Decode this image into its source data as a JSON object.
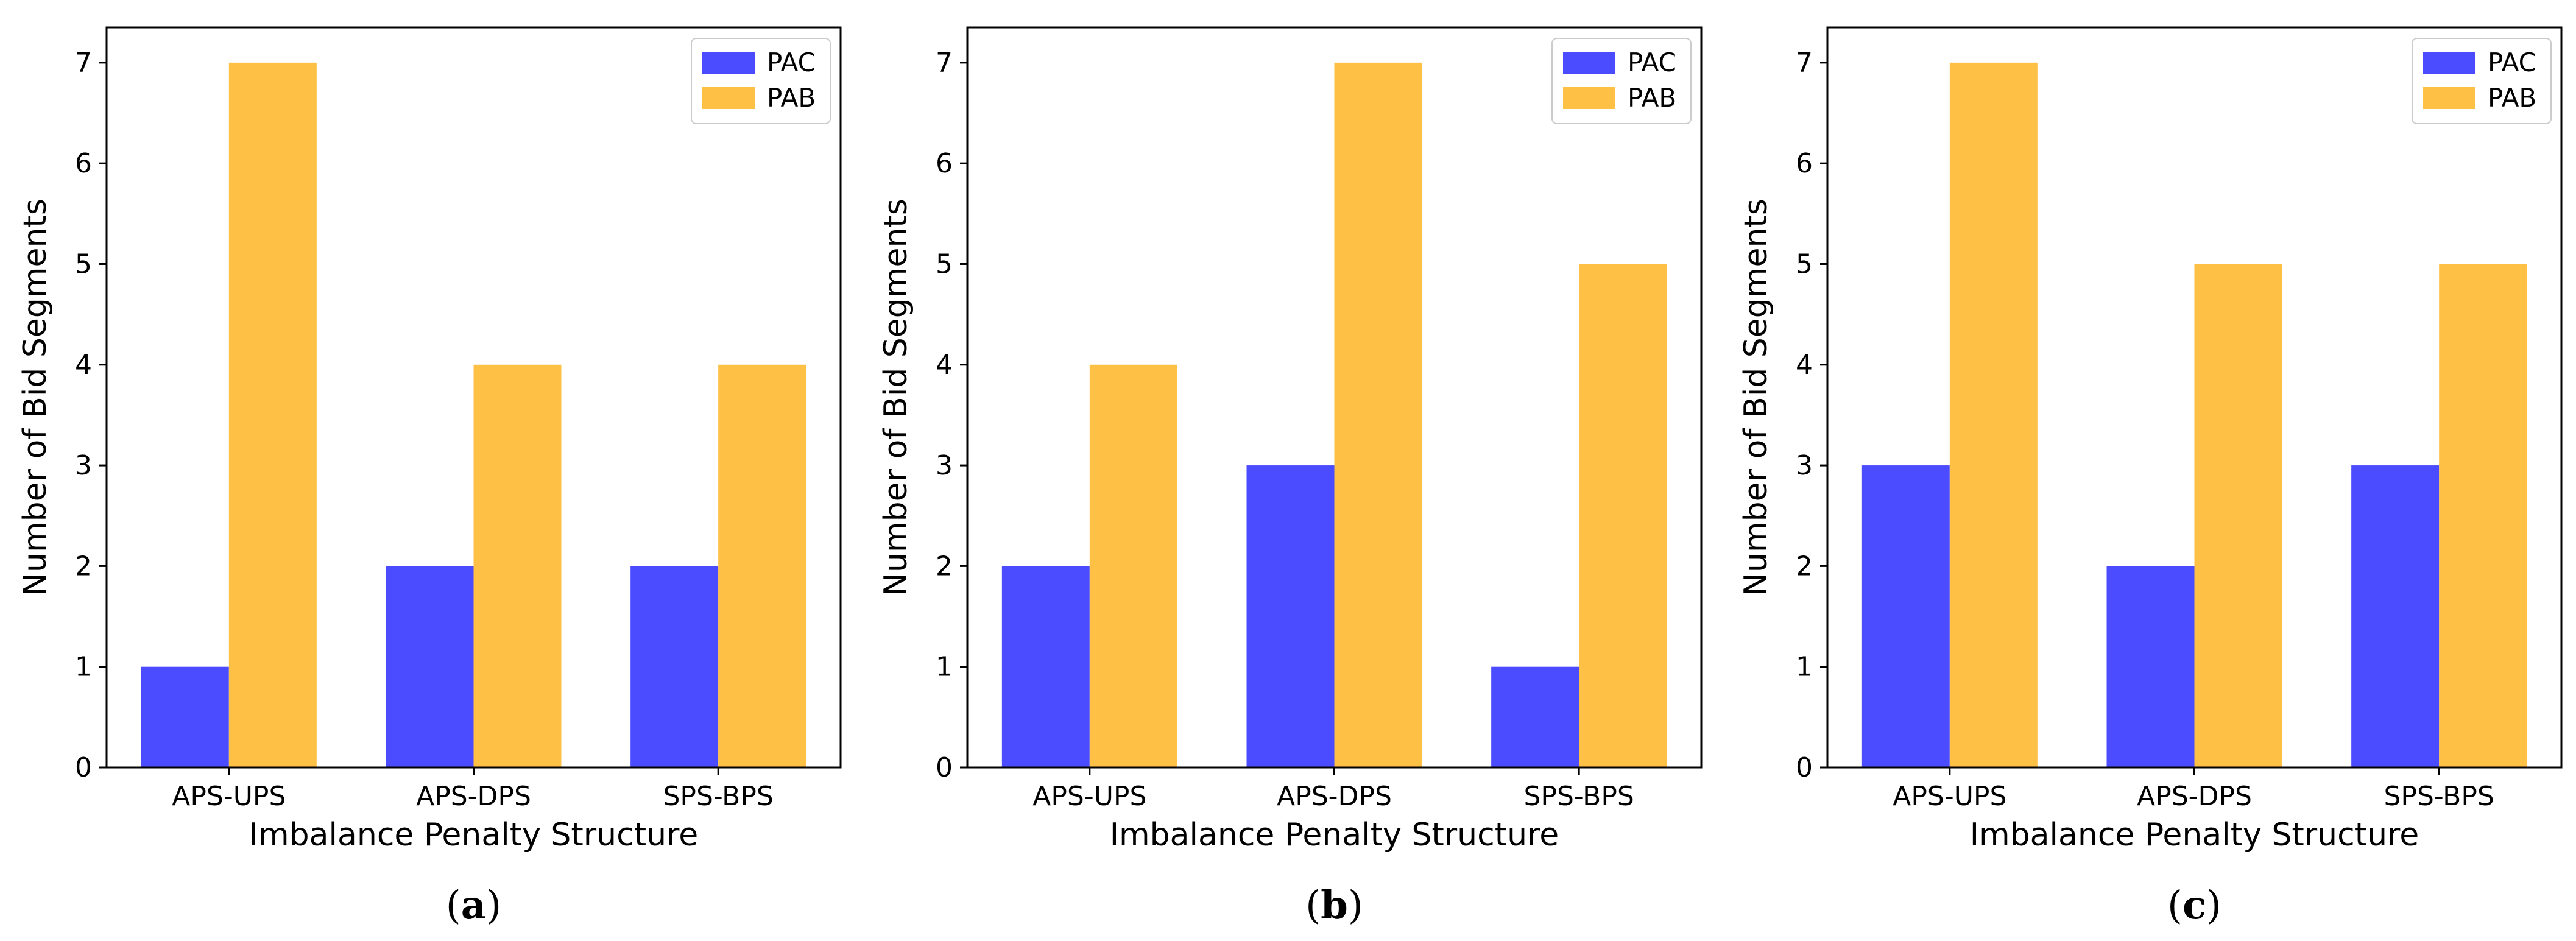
{
  "chart_data": [
    {
      "type": "bar",
      "caption": "(a)",
      "caption_letter": "a",
      "categories": [
        "APS-UPS",
        "APS-DPS",
        "SPS-BPS"
      ],
      "series": [
        {
          "name": "PAC",
          "color": "#4b4bff",
          "values": [
            1,
            2,
            2
          ]
        },
        {
          "name": "PAB",
          "color": "#ffc145",
          "values": [
            7,
            4,
            4
          ]
        }
      ],
      "xlabel": "Imbalance Penalty Structure",
      "ylabel": "Number of Bid Segments",
      "yticks": [
        "0",
        "1",
        "2",
        "3",
        "4",
        "5",
        "6",
        "7"
      ],
      "ylim": [
        0,
        7.35
      ],
      "legend": "top-right",
      "grid": false
    },
    {
      "type": "bar",
      "caption": "(b)",
      "caption_letter": "b",
      "categories": [
        "APS-UPS",
        "APS-DPS",
        "SPS-BPS"
      ],
      "series": [
        {
          "name": "PAC",
          "color": "#4b4bff",
          "values": [
            2,
            3,
            1
          ]
        },
        {
          "name": "PAB",
          "color": "#ffc145",
          "values": [
            4,
            7,
            5
          ]
        }
      ],
      "xlabel": "Imbalance Penalty Structure",
      "ylabel": "Number of Bid Segments",
      "yticks": [
        "0",
        "1",
        "2",
        "3",
        "4",
        "5",
        "6",
        "7"
      ],
      "ylim": [
        0,
        7.35
      ],
      "legend": "top-right",
      "grid": false
    },
    {
      "type": "bar",
      "caption": "(c)",
      "caption_letter": "c",
      "categories": [
        "APS-UPS",
        "APS-DPS",
        "SPS-BPS"
      ],
      "series": [
        {
          "name": "PAC",
          "color": "#4b4bff",
          "values": [
            3,
            2,
            3
          ]
        },
        {
          "name": "PAB",
          "color": "#ffc145",
          "values": [
            7,
            5,
            5
          ]
        }
      ],
      "xlabel": "Imbalance Penalty Structure",
      "ylabel": "Number of Bid Segments",
      "yticks": [
        "0",
        "1",
        "2",
        "3",
        "4",
        "5",
        "6",
        "7"
      ],
      "ylim": [
        0,
        7.35
      ],
      "legend": "top-right",
      "grid": false
    }
  ]
}
